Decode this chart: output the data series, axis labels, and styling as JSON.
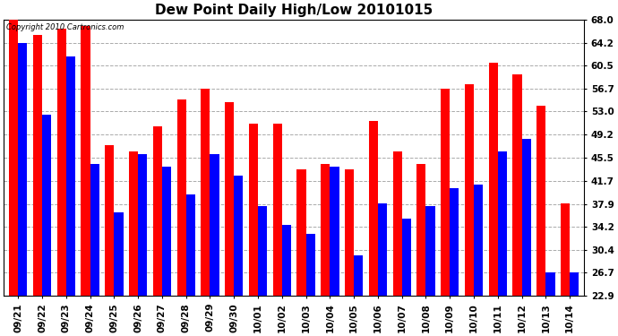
{
  "title": "Dew Point Daily High/Low 20101015",
  "copyright": "Copyright 2010 Cartronics.com",
  "categories": [
    "09/21",
    "09/22",
    "09/23",
    "09/24",
    "09/25",
    "09/26",
    "09/27",
    "09/28",
    "09/29",
    "09/30",
    "10/01",
    "10/02",
    "10/03",
    "10/04",
    "10/05",
    "10/06",
    "10/07",
    "10/08",
    "10/09",
    "10/10",
    "10/11",
    "10/12",
    "10/13",
    "10/14"
  ],
  "highs": [
    68.0,
    65.5,
    66.5,
    67.0,
    47.5,
    46.5,
    50.5,
    55.0,
    56.7,
    54.5,
    51.0,
    51.0,
    43.5,
    44.5,
    43.5,
    51.5,
    46.5,
    44.5,
    56.7,
    57.5,
    61.0,
    59.0,
    54.0,
    38.0
  ],
  "lows": [
    64.2,
    52.5,
    62.0,
    44.5,
    36.5,
    46.0,
    44.0,
    39.5,
    46.0,
    42.5,
    37.5,
    34.5,
    33.0,
    44.0,
    29.5,
    38.0,
    35.5,
    37.5,
    40.5,
    41.0,
    46.5,
    48.5,
    26.7,
    26.7
  ],
  "high_color": "#ff0000",
  "low_color": "#0000ff",
  "bg_color": "#ffffff",
  "grid_color": "#aaaaaa",
  "yticks": [
    22.9,
    26.7,
    30.4,
    34.2,
    37.9,
    41.7,
    45.5,
    49.2,
    53.0,
    56.7,
    60.5,
    64.2,
    68.0
  ],
  "ymin": 22.9,
  "ymax": 68.0,
  "title_fontsize": 11,
  "tick_fontsize": 7.5,
  "bar_width": 0.38
}
